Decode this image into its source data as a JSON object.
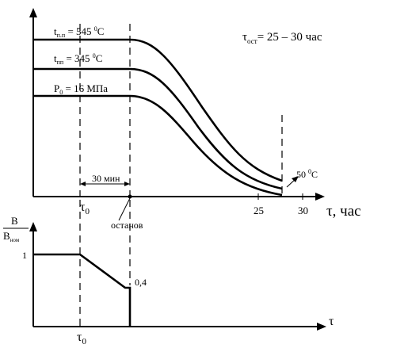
{
  "top_chart": {
    "duration_label": "τ",
    "duration_sub": "ост",
    "duration_value": "= 25 – 30 час",
    "curve_labels": [
      {
        "main": "t",
        "sub": "п.п",
        "value": " = 545 ",
        "unit_sup": "0",
        "unit": "C"
      },
      {
        "main": "t",
        "sub": "пп",
        "value": " = 345 ",
        "unit_sup": "0",
        "unit": "C"
      },
      {
        "main": "P",
        "sub": "0",
        "value": " = 16 МПа",
        "unit_sup": "",
        "unit": ""
      }
    ],
    "interval_label": "30 мин",
    "end_temp_value": "50 ",
    "end_temp_sup": "0",
    "end_temp_unit": "C",
    "x_axis_label": "τ, час",
    "x_ticks": [
      "25",
      "30"
    ],
    "tau0_label": "τ",
    "tau0_sub": "0",
    "stop_label": "останов"
  },
  "bottom_chart": {
    "y_label_num": "B",
    "y_label_den": "B",
    "y_label_den_sub": "ном",
    "y_tick": "1",
    "level_label": "0,4",
    "x_axis_label": "τ",
    "tau0_label": "τ",
    "tau0_sub": "0"
  }
}
